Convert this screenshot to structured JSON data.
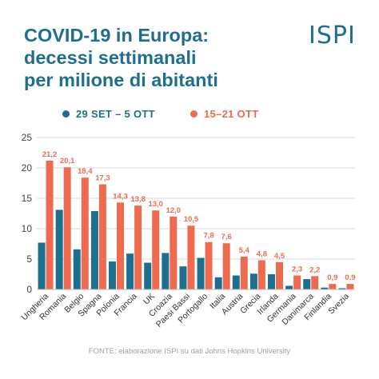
{
  "header": {
    "title_lines": [
      "COVID-19 in Europa:",
      "decessi settimanali",
      "per milione di abitanti"
    ],
    "logo": "ISPI"
  },
  "footer": {
    "source": "FONTE: elaborazione ISPI su dati Johns Hopkins University"
  },
  "colors": {
    "series_1": "#1e6f8e",
    "series_2": "#ee6b4f",
    "title": "#1e6f8e",
    "grid": "#d8d8d8",
    "axis_text": "#444444"
  },
  "chart_data": {
    "type": "bar",
    "title": "COVID-19 in Europa: decessi settimanali per milione di abitanti",
    "xlabel": "",
    "ylabel": "",
    "ylim": [
      0,
      25
    ],
    "yticks": [
      0,
      5,
      10,
      15,
      20,
      25
    ],
    "grid": true,
    "legend_position": "top",
    "categories": [
      "Ungheria",
      "Romania",
      "Belgio",
      "Spagna",
      "Polonia",
      "Francia",
      "UK",
      "Croazia",
      "Paesi Bassi",
      "Portogallo",
      "Italia",
      "Austria",
      "Grecia",
      "Irlanda",
      "Germania",
      "Danimarca",
      "Finlandia",
      "Svezia"
    ],
    "series": [
      {
        "name": "29 SET – 5 OTT",
        "values": [
          7.7,
          13.1,
          6.6,
          12.9,
          4.6,
          5.9,
          4.4,
          6.0,
          3.8,
          5.2,
          2.0,
          2.3,
          2.6,
          2.5,
          0.6,
          1.7,
          0.3,
          0.2
        ],
        "labeled": false
      },
      {
        "name": "15–21 OTT",
        "values": [
          21.2,
          20.1,
          18.4,
          17.3,
          14.3,
          13.8,
          13.0,
          12.0,
          10.5,
          7.8,
          7.6,
          5.4,
          4.8,
          4.5,
          2.3,
          2.2,
          0.9,
          0.9
        ],
        "labels": [
          "21,2",
          "20,1",
          "18,4",
          "17,3",
          "14,3",
          "13,8",
          "13,0",
          "12,0",
          "10,5",
          "7,8",
          "7,6",
          "5,4",
          "4,8",
          "4,5",
          "2,3",
          "2,2",
          "0,9",
          "0,9"
        ],
        "labeled": true
      }
    ]
  }
}
